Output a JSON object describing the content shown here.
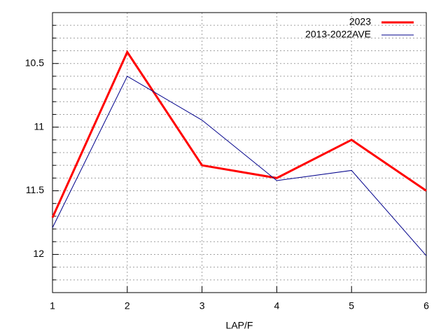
{
  "chart_data": {
    "type": "line",
    "x_label": "LAP/F",
    "x": [
      1,
      2,
      3,
      4,
      5,
      6
    ],
    "xlim": [
      1,
      6
    ],
    "xticks": [
      1,
      2,
      3,
      4,
      5,
      6
    ],
    "ylim": [
      12.3,
      10.1
    ],
    "y_reversed": true,
    "yticks": [
      10.5,
      11,
      11.5,
      12
    ],
    "yminorticks": [
      10.2,
      10.3,
      10.4,
      10.6,
      10.7,
      10.8,
      10.9,
      11.1,
      11.2,
      11.3,
      11.4,
      11.6,
      11.7,
      11.8,
      11.9,
      12.1,
      12.2
    ],
    "grid": true,
    "legend": "top-right",
    "series": [
      {
        "name": "2023",
        "color": "#ff0000",
        "width": 3,
        "values": [
          11.71,
          10.41,
          11.3,
          11.4,
          11.1,
          11.5
        ]
      },
      {
        "name": "2013-2022AVE",
        "color": "#00008b",
        "width": 1,
        "values": [
          11.79,
          10.6,
          10.945,
          11.42,
          11.34,
          12.01
        ]
      }
    ]
  }
}
